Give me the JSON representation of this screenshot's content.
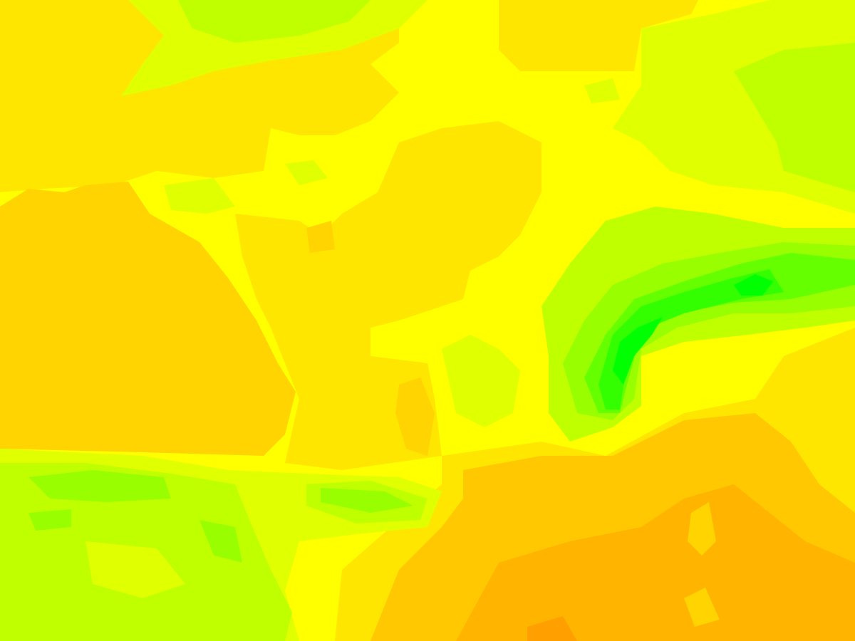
{
  "map": {
    "type": "filled-contour",
    "palette": {
      "deep_orange": "#ffa000",
      "orange": "#ffb400",
      "amber": "#ffc800",
      "gold": "#ffd400",
      "light_gold": "#ffe600",
      "yellow": "#ffff00",
      "yellow_green": "#e0ff00",
      "lime": "#c0ff00",
      "light_green": "#99ff00",
      "green": "#66ff00",
      "bright_green": "#33ff00",
      "pure_green": "#00ff00"
    }
  }
}
